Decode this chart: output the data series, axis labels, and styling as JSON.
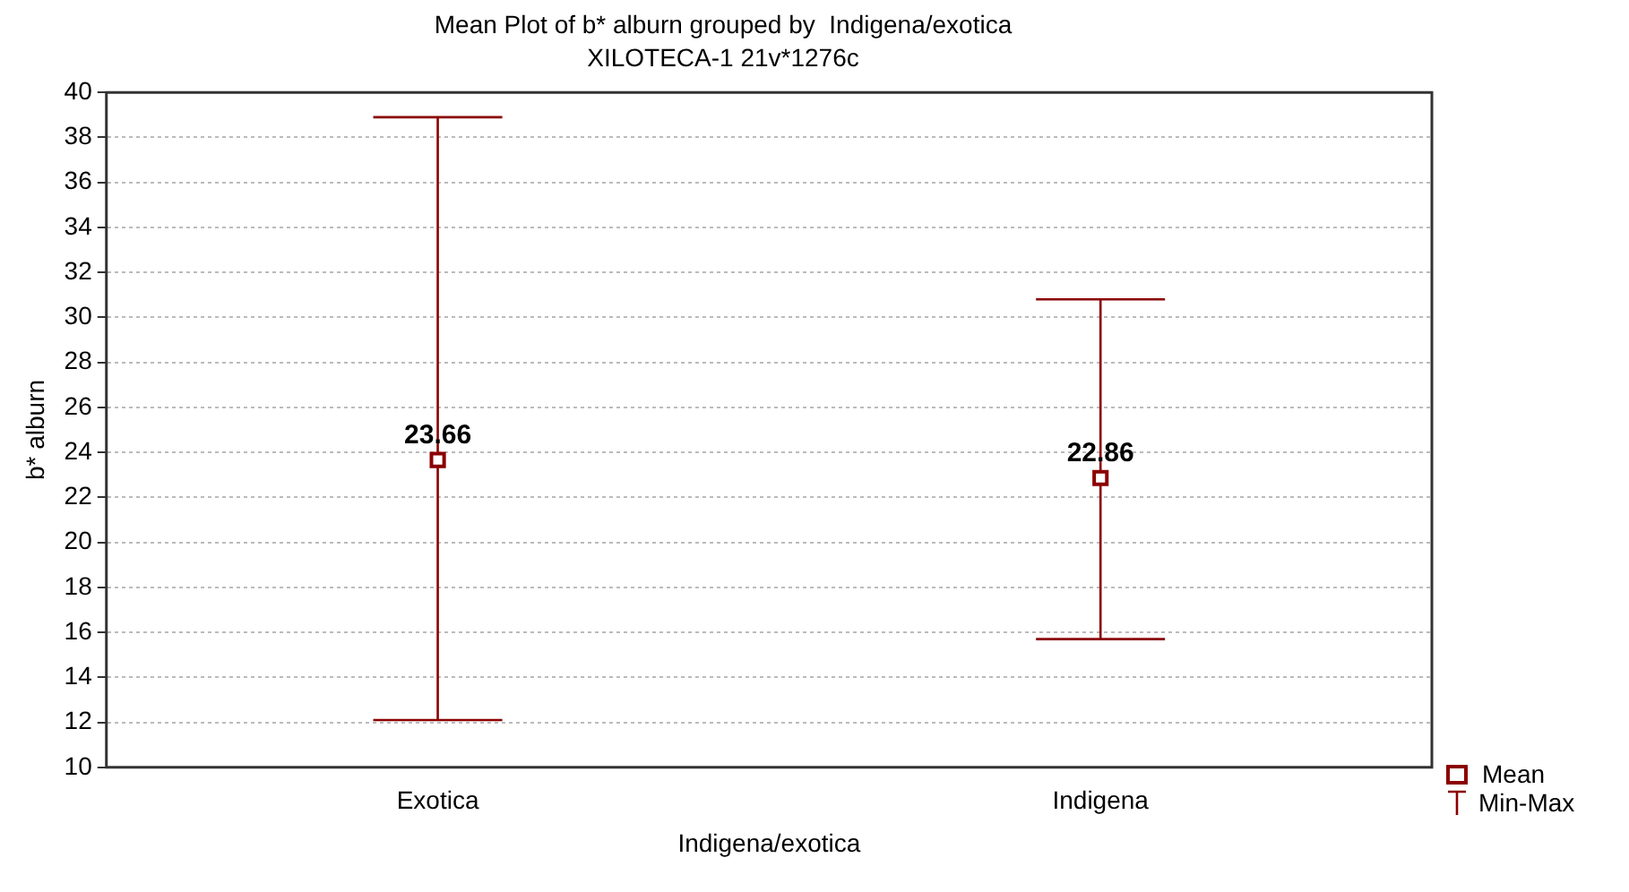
{
  "chart_data": {
    "type": "scatter",
    "title": "Mean Plot of b* alburn grouped by  Indigena/exotica",
    "subtitle": "XILOTECA-1 21v*1276c",
    "xlabel": "Indigena/exotica",
    "ylabel": "b* alburn",
    "categories": [
      "Exotica",
      "Indigena"
    ],
    "series": [
      {
        "name": "Mean",
        "color": "#8b0000",
        "values": [
          23.66,
          22.86
        ],
        "errors": [
          [
            12.1,
            38.9
          ],
          [
            15.7,
            30.8
          ]
        ]
      }
    ],
    "annotations": [
      "Min-Max"
    ],
    "ylim": [
      10,
      40
    ],
    "yticks": [
      10,
      12,
      14,
      16,
      18,
      20,
      22,
      24,
      26,
      28,
      30,
      32,
      34,
      36,
      38,
      40
    ],
    "grid": "y",
    "legend": "bottom right",
    "marker": "square",
    "data_labels": true
  }
}
